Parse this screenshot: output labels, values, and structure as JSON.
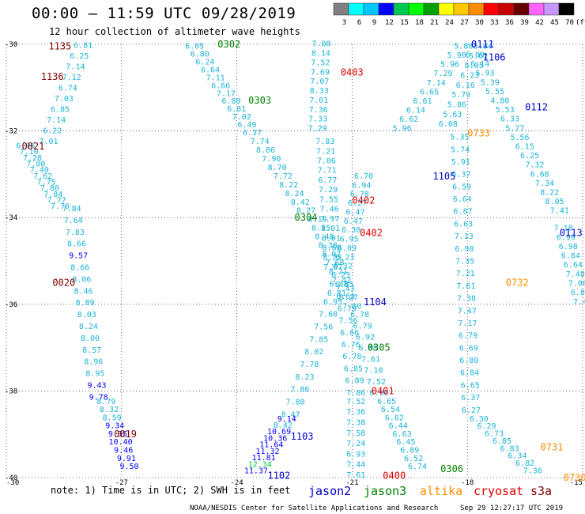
{
  "header": {
    "title": "00:00 — 11:59 UTC 09/28/2019",
    "subtitle": "12 hour collection of altimeter wave heights"
  },
  "footer": {
    "note": "note: 1) Time is in UTC; 2) SWH is in feet",
    "credit": "NOAA/NESDIS Center for Satellite Applications and Research",
    "timestamp": "Sep 29 12:27:17 UTC 2019"
  },
  "colors": {
    "jason2": "#0000c8",
    "jason3": "#008000",
    "altika": "#ff8c00",
    "cryosat": "#e00000",
    "s3a": "#800000",
    "data_text": "#1ab4d8",
    "grid": "#000000"
  },
  "chart_data": {
    "type": "scatter",
    "title": "00:00 — 11:59 UTC 09/28/2019",
    "subtitle": "12 hour collection of altimeter wave heights",
    "x_unit": "longitude",
    "y_unit": "latitude",
    "xlim": [
      -30,
      -15
    ],
    "ylim": [
      -40,
      -30
    ],
    "x_ticks": [
      -30,
      -27,
      -24,
      -21,
      -18,
      -15
    ],
    "y_ticks": [
      -30,
      -32,
      -34,
      -36,
      -38,
      -40
    ],
    "grid": "dotted",
    "color_scale": {
      "unit": "(ft)",
      "labels": [
        "3",
        "6",
        "9",
        "12",
        "15",
        "18",
        "21",
        "24",
        "27",
        "30",
        "33",
        "36",
        "39",
        "42",
        "45",
        "70"
      ],
      "colors": [
        "#808080",
        "#00ffff",
        "#00c8ff",
        "#0000ff",
        "#00c850",
        "#00ff00",
        "#00a000",
        "#ffff00",
        "#ffc800",
        "#ff8c00",
        "#ff0000",
        "#c80000",
        "#640000",
        "#ff64ff",
        "#c896ff",
        "#000000"
      ]
    },
    "legend": {
      "placement": "bottom",
      "entries": [
        {
          "name": "jason2",
          "color": "#0000c8"
        },
        {
          "name": "jason3",
          "color": "#008000"
        },
        {
          "name": "altika",
          "color": "#ff8c00"
        },
        {
          "name": "cryosat",
          "color": "#e00000"
        },
        {
          "name": "s3a",
          "color": "#800000"
        }
      ]
    },
    "time_labels": [
      {
        "text": "1135",
        "lon": -28.9,
        "lat": -30.05,
        "sat": "s3a"
      },
      {
        "text": "1136",
        "lon": -29.1,
        "lat": -30.75,
        "sat": "s3a"
      },
      {
        "text": "0021",
        "lon": -29.6,
        "lat": -32.35,
        "sat": "s3a"
      },
      {
        "text": "0020",
        "lon": -28.8,
        "lat": -35.5,
        "sat": "s3a"
      },
      {
        "text": "0019",
        "lon": -27.2,
        "lat": -39.0,
        "sat": "s3a"
      },
      {
        "text": "0302",
        "lon": -24.5,
        "lat": -30.0,
        "sat": "jason3"
      },
      {
        "text": "0303",
        "lon": -23.7,
        "lat": -31.3,
        "sat": "jason3"
      },
      {
        "text": "0304",
        "lon": -22.5,
        "lat": -34.0,
        "sat": "jason3"
      },
      {
        "text": "0305",
        "lon": -20.6,
        "lat": -37.0,
        "sat": "jason3"
      },
      {
        "text": "0306",
        "lon": -18.7,
        "lat": -39.8,
        "sat": "jason3"
      },
      {
        "text": "0403",
        "lon": -21.3,
        "lat": -30.65,
        "sat": "cryosat"
      },
      {
        "text": "0402",
        "lon": -21.0,
        "lat": -33.6,
        "sat": "cryosat"
      },
      {
        "text": "0402",
        "lon": -20.8,
        "lat": -34.35,
        "sat": "cryosat"
      },
      {
        "text": "0401",
        "lon": -20.5,
        "lat": -38.0,
        "sat": "cryosat"
      },
      {
        "text": "0400",
        "lon": -20.2,
        "lat": -39.95,
        "sat": "cryosat"
      },
      {
        "text": "1104",
        "lon": -20.7,
        "lat": -35.95,
        "sat": "jason2"
      },
      {
        "text": "1103",
        "lon": -22.6,
        "lat": -39.05,
        "sat": "jason2"
      },
      {
        "text": "1102",
        "lon": -23.2,
        "lat": -39.95,
        "sat": "jason2"
      },
      {
        "text": "1105",
        "lon": -18.9,
        "lat": -33.05,
        "sat": "jason2"
      },
      {
        "text": "0111",
        "lon": -17.9,
        "lat": -30.0,
        "sat": "jason2"
      },
      {
        "text": "1106",
        "lon": -17.6,
        "lat": -30.3,
        "sat": "jason2"
      },
      {
        "text": "0112",
        "lon": -16.5,
        "lat": -31.45,
        "sat": "jason2"
      },
      {
        "text": "0113",
        "lon": -15.6,
        "lat": -34.35,
        "sat": "jason2"
      },
      {
        "text": "0733",
        "lon": -18.0,
        "lat": -32.05,
        "sat": "altika"
      },
      {
        "text": "0732",
        "lon": -17.0,
        "lat": -35.5,
        "sat": "altika"
      },
      {
        "text": "0731",
        "lon": -16.1,
        "lat": -39.3,
        "sat": "altika"
      },
      {
        "text": "0730",
        "lon": -15.5,
        "lat": -40.0,
        "sat": "altika"
      }
    ],
    "tracks": [
      {
        "name": "s3a-1135",
        "start": [
          -28.0,
          -30.08
        ],
        "end": [
          -28.9,
          -32.3
        ],
        "values": [
          "6.81",
          "6.25",
          "7.14",
          "7.12",
          "6.74",
          "7.03",
          "6.85",
          "7.14",
          "6.22",
          "7.01"
        ]
      },
      {
        "name": "s3a-0021",
        "start": [
          -29.5,
          -32.4
        ],
        "end": [
          -28.6,
          -33.8
        ],
        "values": [
          "6.96",
          "7.10",
          "7.28",
          "7.00",
          "7.40",
          "7.62",
          "7.75",
          "7.80",
          "7.84",
          "7.77",
          "7.70"
        ]
      },
      {
        "name": "s3a-0020",
        "start": [
          -28.3,
          -33.85
        ],
        "end": [
          -27.6,
          -38.2
        ],
        "values": [
          "7.84",
          "7.64",
          "7.83",
          "8.66",
          "9.57",
          "8.66",
          "8.06",
          "8.46",
          "8.89",
          "8.03",
          "8.24",
          "8.00",
          "8.57",
          "8.96",
          "8.95",
          "9.43",
          "9.78"
        ]
      },
      {
        "name": "s3a-0019",
        "start": [
          -27.4,
          -38.3
        ],
        "end": [
          -26.8,
          -39.8
        ],
        "values": [
          "8.79",
          "8.32",
          "8.59",
          "9.34",
          "9.35",
          "10.40",
          "9.46",
          "9.91",
          "9.50"
        ]
      },
      {
        "name": "jason3-0302",
        "start": [
          -25.1,
          -30.1
        ],
        "end": [
          -23.6,
          -32.1
        ],
        "values": [
          "6.05",
          "6.80",
          "6.24",
          "6.64",
          "7.11",
          "6.66",
          "7.17",
          "6.80",
          "6.81",
          "7.02",
          "6.49",
          "6.37"
        ]
      },
      {
        "name": "jason3-0303",
        "start": [
          -23.4,
          -32.3
        ],
        "end": [
          -22.2,
          -33.9
        ],
        "values": [
          "7.74",
          "8.06",
          "7.90",
          "8.70",
          "7.72",
          "8.22",
          "8.24",
          "8.42",
          "8.27"
        ]
      },
      {
        "name": "jason3-0304",
        "start": [
          -21.9,
          -34.1
        ],
        "end": [
          -21.0,
          -36.1
        ],
        "values": [
          "8.19",
          "8.15",
          "8.48",
          "8.38",
          "8.07",
          "7.68",
          "8.21",
          "7.42",
          "7.43",
          "6.27",
          "7.00"
        ]
      },
      {
        "name": "jason3-0305",
        "start": [
          -20.8,
          -36.3
        ],
        "end": [
          -20.3,
          -38.1
        ],
        "values": [
          "6.78",
          "6.79",
          "6.92",
          "6.88",
          "7.61",
          "7.10",
          "7.52",
          "6.96"
        ]
      },
      {
        "name": "jason3-0306",
        "start": [
          -20.1,
          -38.3
        ],
        "end": [
          -19.3,
          -39.8
        ],
        "values": [
          "6.65",
          "6.54",
          "6.62",
          "6.44",
          "6.63",
          "6.45",
          "6.89",
          "6.52",
          "6.74"
        ]
      },
      {
        "name": "cryosat-0403",
        "start": [
          -21.8,
          -30.05
        ],
        "end": [
          -21.9,
          -32.0
        ],
        "values": [
          "7.00",
          "8.14",
          "7.52",
          "7.69",
          "7.07",
          "8.33",
          "7.01",
          "7.36",
          "7.33",
          "7.29"
        ]
      },
      {
        "name": "cryosat-0402",
        "start": [
          -21.7,
          -32.3
        ],
        "end": [
          -21.5,
          -35.2
        ],
        "values": [
          "7.83",
          "7.21",
          "7.06",
          "7.71",
          "6.77",
          "7.29",
          "7.55",
          "7.46",
          "7.97",
          "8.01",
          "8.01",
          "8.60",
          "8.23",
          "7.67"
        ]
      },
      {
        "name": "cryosat-0401",
        "start": [
          -21.2,
          -35.6
        ],
        "end": [
          -20.9,
          -38.1
        ],
        "values": [
          "6.85",
          "6.63",
          "6.79",
          "7.56",
          "6.66",
          "6.76",
          "6.78",
          "6.85",
          "6.89",
          "7.86"
        ]
      },
      {
        "name": "cryosat-0400",
        "start": [
          -20.9,
          -38.3
        ],
        "end": [
          -20.9,
          -40.0
        ],
        "values": [
          "7.52",
          "7.36",
          "7.38",
          "7.58",
          "7.24",
          "6.93",
          "7.44",
          "7.61"
        ]
      },
      {
        "name": "jason2-1104",
        "start": [
          -20.7,
          -33.1
        ],
        "end": [
          -21.4,
          -35.8
        ],
        "values": [
          "6.70",
          "6.94",
          "6.78",
          "6.27",
          "6.47",
          "6.47",
          "6.30",
          "6.95",
          "6.09",
          "6.23",
          "6.32",
          "6.23",
          "6.48",
          "6.41"
        ]
      },
      {
        "name": "jason2-1103",
        "start": [
          -21.5,
          -36.0
        ],
        "end": [
          -22.6,
          -38.6
        ],
        "values": [
          "6.95",
          "7.60",
          "7.56",
          "7.85",
          "8.02",
          "7.78",
          "8.23",
          "7.86",
          "7.80",
          "8.47"
        ]
      },
      {
        "name": "jason2-1102",
        "start": [
          -22.7,
          -38.7
        ],
        "end": [
          -23.5,
          -39.9
        ],
        "values": [
          "9.14",
          "8.42",
          "10.69",
          "10.36",
          "11.64",
          "11.32",
          "11.81",
          "12.34",
          "11.37"
        ]
      },
      {
        "name": "jason2-1105",
        "start": [
          -18.1,
          -30.1
        ],
        "end": [
          -19.7,
          -32.0
        ],
        "values": [
          "5.88",
          "5.90",
          "5.96",
          "7.29",
          "7.14",
          "6.65",
          "6.61",
          "6.14",
          "6.62",
          "5.96"
        ]
      },
      {
        "name": "jason2-0111",
        "start": [
          -17.6,
          -30.1
        ],
        "end": [
          -18.5,
          -31.9
        ],
        "values": [
          "5.84",
          "5.62",
          "6.05",
          "6.23",
          "6.16",
          "5.79",
          "5.86",
          "5.63",
          "6.08"
        ]
      },
      {
        "name": "altika-0733",
        "start": [
          -18.2,
          -32.2
        ],
        "end": [
          -17.9,
          -38.5
        ],
        "values": [
          "5.35",
          "5.74",
          "5.91",
          "6.37",
          "6.59",
          "6.64",
          "6.87",
          "6.63",
          "7.13",
          "6.98",
          "7.35",
          "7.21",
          "7.61",
          "7.38",
          "7.47",
          "7.17",
          "6.79",
          "6.69",
          "6.80",
          "6.84",
          "6.65",
          "6.37",
          "6.27"
        ]
      },
      {
        "name": "altika-0731",
        "start": [
          -17.7,
          -38.7
        ],
        "end": [
          -16.3,
          -39.9
        ],
        "values": [
          "6.30",
          "6.29",
          "6.73",
          "6.85",
          "6.83",
          "6.34",
          "6.82",
          "7.36"
        ]
      },
      {
        "name": "jason2-0112",
        "start": [
          -17.8,
          -30.3
        ],
        "end": [
          -15.6,
          -33.9
        ],
        "values": [
          "6.09",
          "6.14",
          "5.93",
          "5.39",
          "5.55",
          "4.80",
          "5.53",
          "6.33",
          "5.77",
          "5.56",
          "6.15",
          "6.25",
          "7.32",
          "6.68",
          "7.34",
          "8.22",
          "8.05",
          "7.41"
        ]
      },
      {
        "name": "jason2-0113",
        "start": [
          -15.5,
          -34.3
        ],
        "end": [
          -15.0,
          -36.0
        ],
        "values": [
          "7.18",
          "6.99",
          "6.98",
          "6.84",
          "6.64",
          "7.48",
          "7.00",
          "6.85",
          "7.40"
        ]
      }
    ]
  }
}
